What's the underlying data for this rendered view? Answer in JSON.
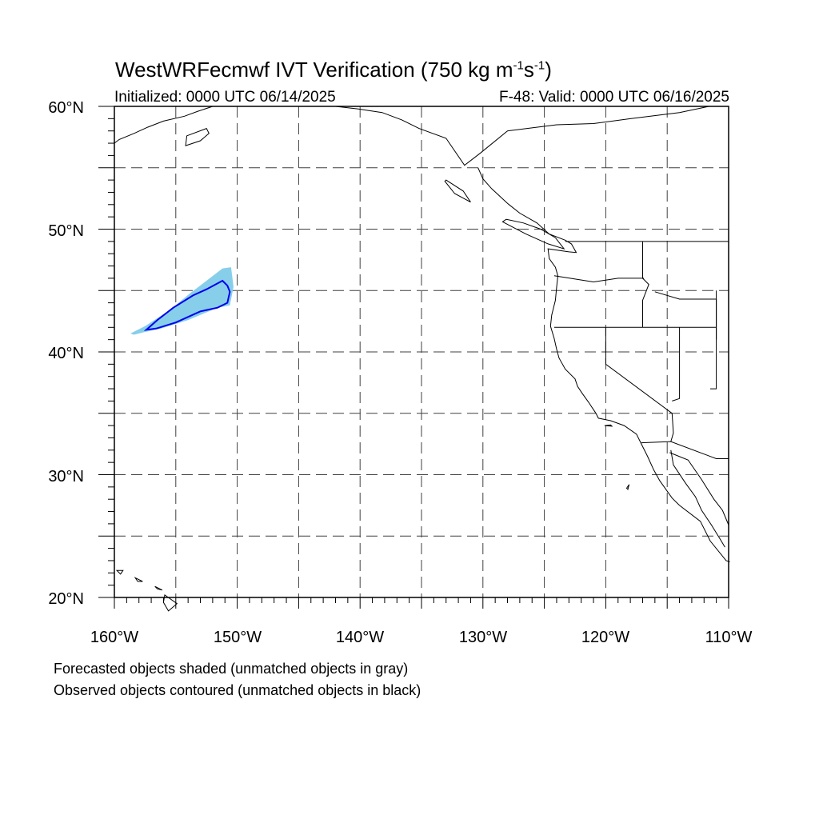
{
  "title": {
    "prefix": "WestWRFecmwf IVT Verification (750 kg m",
    "sup1": "-1",
    "mid": "s",
    "sup2": "-1",
    "suffix": ")"
  },
  "initialized": "Initialized: 0000 UTC 06/14/2025",
  "valid": "F-48: Valid: 0000 UTC 06/16/2025",
  "map": {
    "lon_range": [
      -160,
      -110
    ],
    "lat_range": [
      20,
      60
    ],
    "lat_labels": [
      "20°N",
      "30°N",
      "40°N",
      "50°N",
      "60°N"
    ],
    "lon_labels": [
      "160°W",
      "150°W",
      "140°W",
      "130°W",
      "120°W",
      "110°W"
    ],
    "grid": "dashed every 5°",
    "forecast_fill_color": "#87ceeb",
    "observed_contour_color": "#0000ee"
  },
  "objects": {
    "forecast_object_shaded": [
      [
        -158.7,
        41.5
      ],
      [
        -157.5,
        42.1
      ],
      [
        -155.5,
        43.4
      ],
      [
        -153.8,
        44.8
      ],
      [
        -152.5,
        45.8
      ],
      [
        -151.2,
        46.8
      ],
      [
        -150.5,
        46.9
      ],
      [
        -150.3,
        45.3
      ],
      [
        -150.6,
        43.8
      ],
      [
        -151.6,
        43.6
      ],
      [
        -154.0,
        42.6
      ],
      [
        -156.2,
        41.9
      ],
      [
        -157.6,
        41.6
      ],
      [
        -158.4,
        41.4
      ]
    ],
    "observed_object_contour": [
      [
        -157.4,
        41.8
      ],
      [
        -156.5,
        42.6
      ],
      [
        -155.2,
        43.6
      ],
      [
        -153.6,
        44.6
      ],
      [
        -152.5,
        45.1
      ],
      [
        -151.2,
        45.8
      ],
      [
        -150.8,
        45.4
      ],
      [
        -150.6,
        44.9
      ],
      [
        -150.8,
        44.0
      ],
      [
        -151.6,
        43.6
      ],
      [
        -153.0,
        43.3
      ],
      [
        -155.0,
        42.4
      ],
      [
        -156.6,
        41.9
      ]
    ]
  },
  "captions": {
    "line1": "Forecasted objects shaded (unmatched objects in gray)",
    "line2": "Observed objects contoured (unmatched objects in black)"
  }
}
